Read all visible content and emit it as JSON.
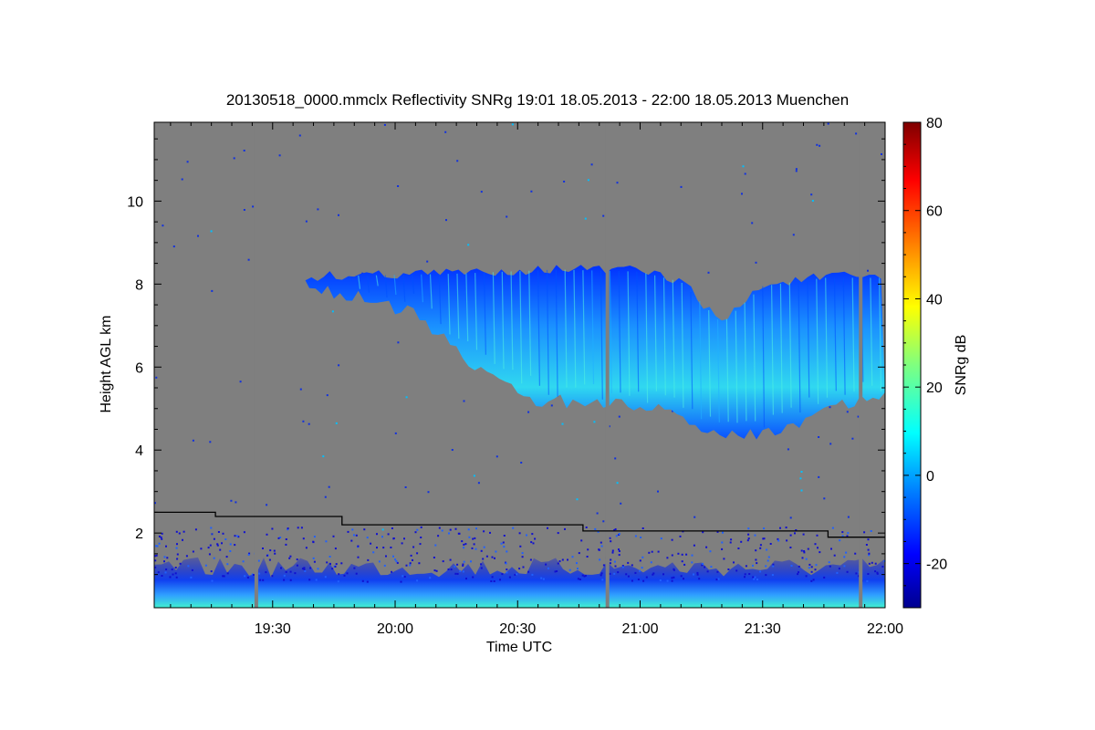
{
  "chart_data": {
    "type": "heatmap",
    "title": "20130518_0000.mmclx Reflectivity SNRg   19:01 18.05.2013 - 22:00 18.05.2013 Muenchen",
    "xlabel": "Time UTC",
    "ylabel": "Height AGL km",
    "colorbar_label": "SNRg dB",
    "x_range": [
      "19:01",
      "22:00"
    ],
    "y_range_km": [
      0.2,
      11.9
    ],
    "colorbar_range_db": [
      -30,
      80
    ],
    "x_ticks": [
      "19:30",
      "20:00",
      "20:30",
      "21:00",
      "21:30",
      "22:00"
    ],
    "y_ticks": [
      "2",
      "4",
      "6",
      "8",
      "10"
    ],
    "colorbar_ticks": [
      "-20",
      "0",
      "20",
      "40",
      "60",
      "80"
    ],
    "background_color": "#7f7f7f",
    "colormap": [
      "#00008f",
      "#0000ff",
      "#007fff",
      "#00ffff",
      "#7fff7f",
      "#ffff00",
      "#ff7f00",
      "#ff0000",
      "#7f0000"
    ],
    "cloud_layer": {
      "top_km": [
        {
          "time": "19:38",
          "value": 8.3
        },
        {
          "time": "19:50",
          "value": 8.35
        },
        {
          "time": "20:15",
          "value": 8.4
        },
        {
          "time": "20:40",
          "value": 8.5
        },
        {
          "time": "21:00",
          "value": 8.45
        },
        {
          "time": "21:10",
          "value": 8.2
        },
        {
          "time": "21:20",
          "value": 7.2
        },
        {
          "time": "21:30",
          "value": 8.1
        },
        {
          "time": "21:45",
          "value": 8.3
        },
        {
          "time": "22:00",
          "value": 8.3
        }
      ],
      "base_km": [
        {
          "time": "19:38",
          "value": 8.0
        },
        {
          "time": "20:05",
          "value": 7.3
        },
        {
          "time": "20:20",
          "value": 6.0
        },
        {
          "time": "20:35",
          "value": 5.2
        },
        {
          "time": "20:50",
          "value": 5.1
        },
        {
          "time": "21:05",
          "value": 5.0
        },
        {
          "time": "21:15",
          "value": 4.6
        },
        {
          "time": "21:25",
          "value": 4.3
        },
        {
          "time": "21:35",
          "value": 4.5
        },
        {
          "time": "21:45",
          "value": 5.0
        },
        {
          "time": "22:00",
          "value": 5.3
        }
      ],
      "peak_snr_db": 18
    },
    "boundary_layer_top_km": 1.5,
    "threshold_line_km": [
      {
        "from": "19:01",
        "to": "19:16",
        "value": 2.5
      },
      {
        "from": "19:16",
        "to": "19:47",
        "value": 2.4
      },
      {
        "from": "19:47",
        "to": "20:46",
        "value": 2.2
      },
      {
        "from": "20:46",
        "to": "21:46",
        "value": 2.05
      },
      {
        "from": "21:46",
        "to": "22:00",
        "value": 1.9
      }
    ],
    "data_gaps": [
      "19:26",
      "20:52",
      "21:54"
    ]
  }
}
